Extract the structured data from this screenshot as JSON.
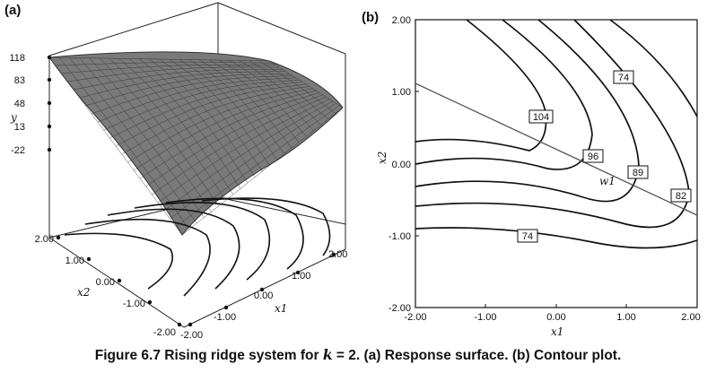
{
  "panel_a": {
    "label": "(a)",
    "y_label": "y",
    "x1_label": "x1",
    "x2_label": "x2",
    "y_ticks": [
      "118",
      "83",
      "48",
      "13",
      "-22"
    ],
    "x2_ticks": [
      "2.00",
      "1.00",
      "0.00",
      "-1.00",
      "-2.00"
    ],
    "x1_ticks": [
      "-2.00",
      "-1.00",
      "0.00",
      "1.00",
      "2.00"
    ]
  },
  "panel_b": {
    "label": "(b)",
    "x_label": "x1",
    "y_label": "x2",
    "ridge_label": "w1",
    "x_ticks": [
      "-2.00",
      "-1.00",
      "0.00",
      "1.00",
      "2.00"
    ],
    "y_ticks": [
      "2.00",
      "1.00",
      "0.00",
      "-1.00",
      "-2.00"
    ],
    "contour_labels": [
      "74",
      "104",
      "96",
      "89",
      "82",
      "74"
    ]
  },
  "caption": {
    "prefix": "Figure 6.7 Rising ridge system for",
    "k": "k",
    "middle": "= 2. (a) Response surface. (b) Contour plot."
  },
  "chart_data": [
    {
      "type": "surface",
      "title": "(a) Response surface",
      "xlabel": "x1",
      "ylabel": "x2",
      "zlabel": "y",
      "x1_range": [
        -2,
        2
      ],
      "x2_range": [
        -2,
        2
      ],
      "zlim": [
        -22,
        118
      ],
      "z_ticks": [
        118,
        83,
        48,
        13,
        -22
      ]
    },
    {
      "type": "contour",
      "title": "(b) Contour plot",
      "xlabel": "x1",
      "ylabel": "x2",
      "xlim": [
        -2,
        2
      ],
      "ylim": [
        -2,
        2
      ],
      "contour_levels": [
        74,
        82,
        89,
        96,
        104
      ],
      "ridge_line": {
        "label": "w1",
        "from": [
          -2,
          1.15
        ],
        "to": [
          2,
          -0.72
        ]
      }
    }
  ]
}
